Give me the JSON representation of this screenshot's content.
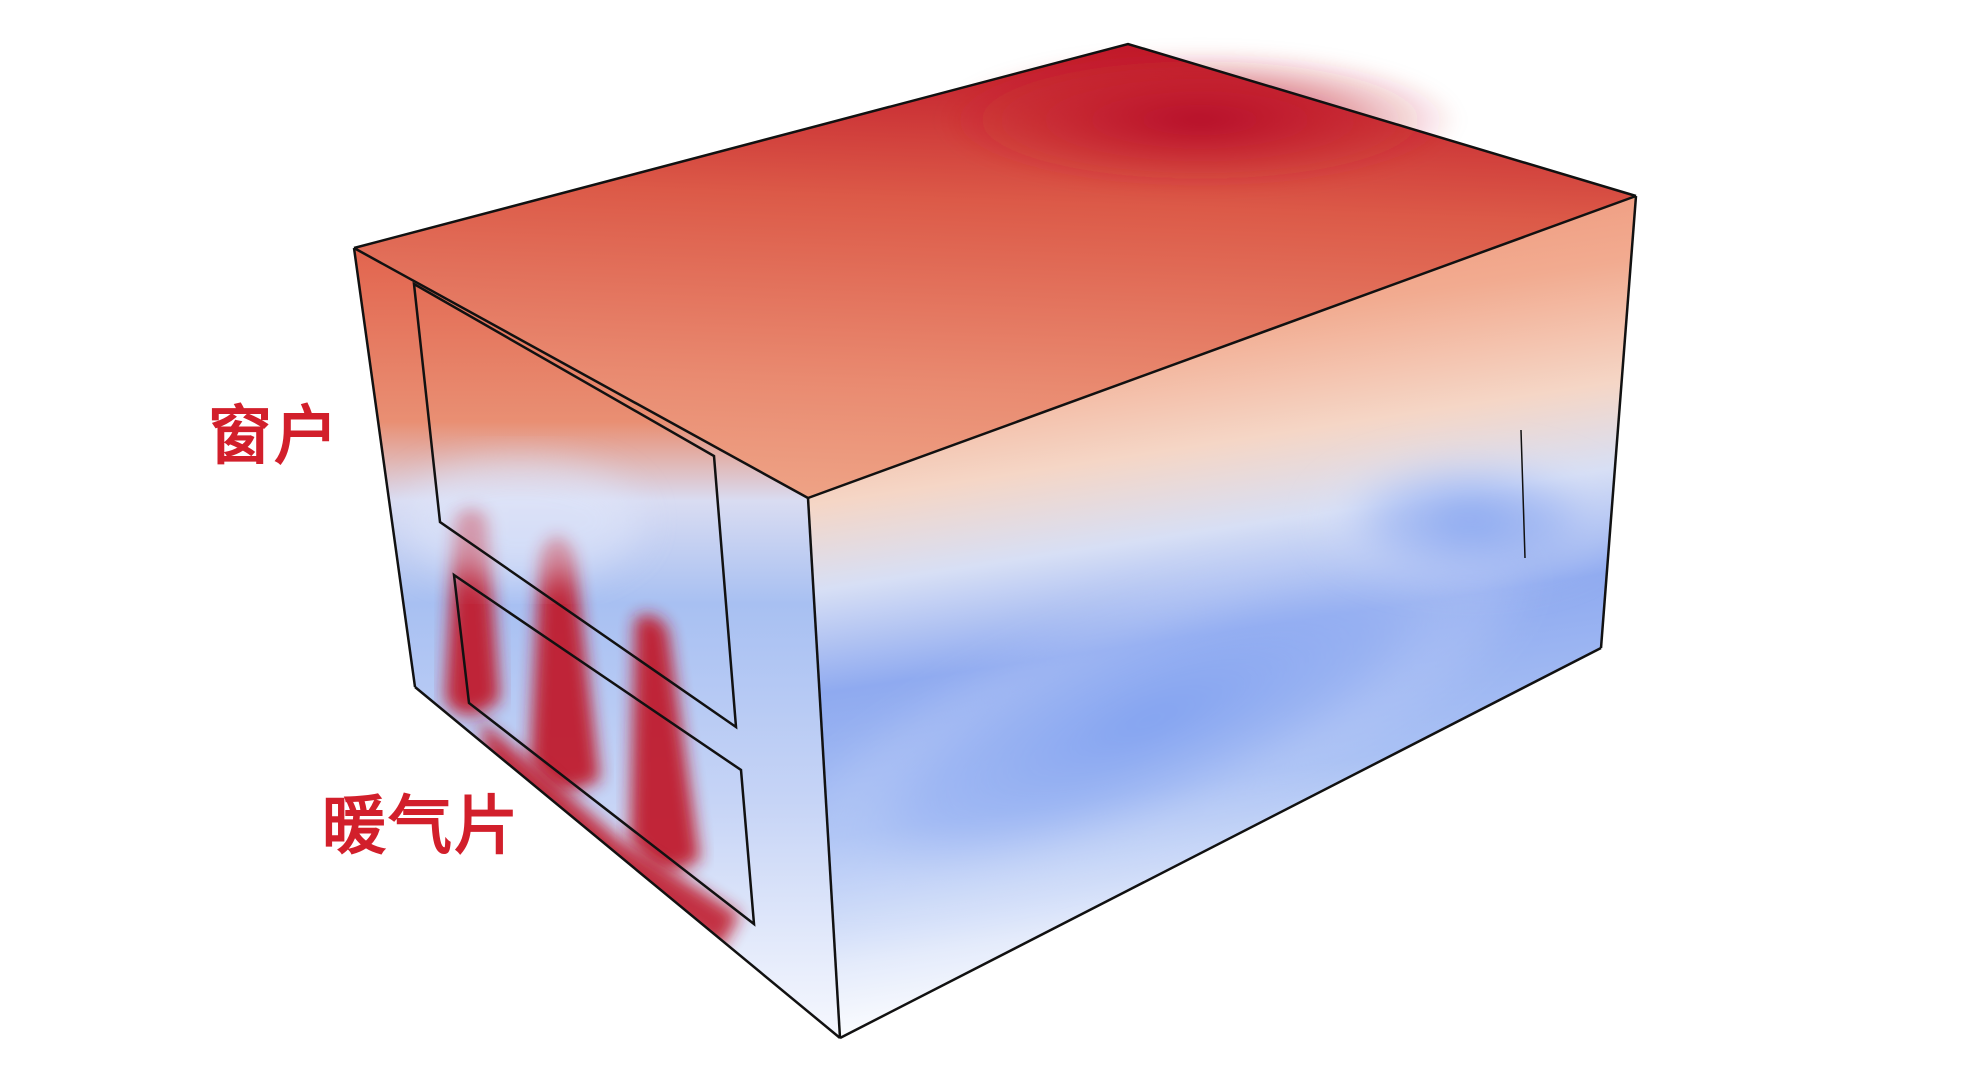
{
  "labels": {
    "window": "窗户",
    "radiator": "暖气片"
  },
  "colors": {
    "label": "#d21f2b",
    "hot": "#c0182a",
    "warm": "#e8735a",
    "neutral": "#f4d8c8",
    "cool": "#a9c0f2",
    "cold": "#7d9ef0",
    "edge": "#111111"
  }
}
